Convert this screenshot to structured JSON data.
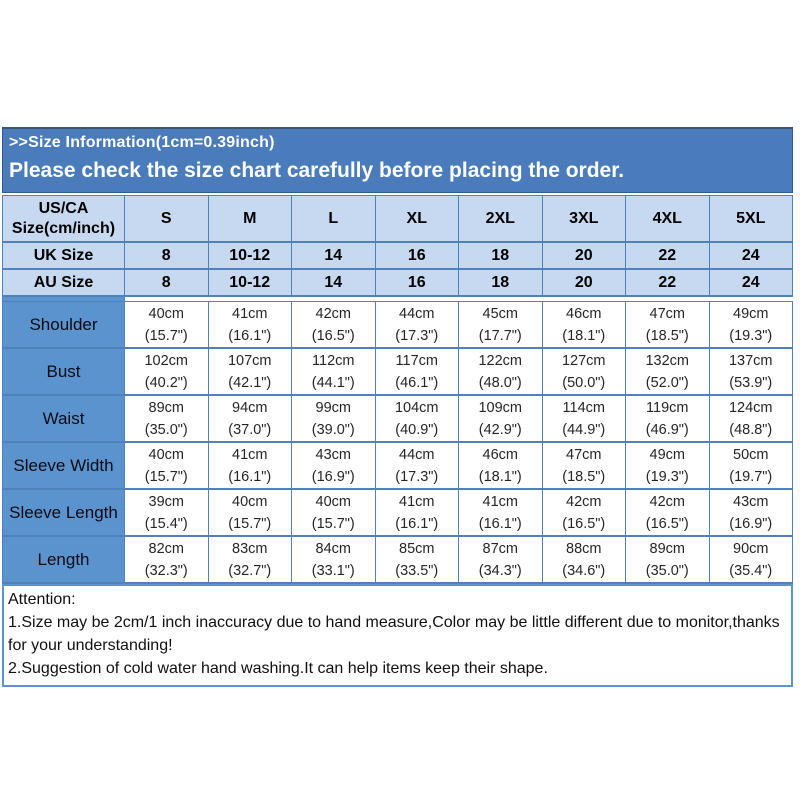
{
  "header": {
    "title": ">>Size Information(1cm=0.39inch)",
    "subtitle": "Please check the size chart carefully before placing the order."
  },
  "colors": {
    "header_bar_blue": "#4a7cbc",
    "light_blue_cell": "#c6d9f0",
    "label_cell_blue": "#5b93cf",
    "border_blue": "#4f81bd",
    "header_text": "#ffffff",
    "cell_text": "#262626"
  },
  "size_table": {
    "corner_label": "US/CA Size(cm/inch)",
    "sizes": [
      "S",
      "M",
      "L",
      "XL",
      "2XL",
      "3XL",
      "4XL",
      "5XL"
    ],
    "uk_row": {
      "label": "UK Size",
      "values": [
        "8",
        "10-12",
        "14",
        "16",
        "18",
        "20",
        "22",
        "24"
      ]
    },
    "au_row": {
      "label": "AU Size",
      "values": [
        "8",
        "10-12",
        "14",
        "16",
        "18",
        "20",
        "22",
        "24"
      ]
    },
    "measurements": [
      {
        "label": "Shoulder",
        "cm": [
          "40cm",
          "41cm",
          "42cm",
          "44cm",
          "45cm",
          "46cm",
          "47cm",
          "49cm"
        ],
        "inch": [
          "(15.7\")",
          "(16.1\")",
          "(16.5\")",
          "(17.3\")",
          "(17.7\")",
          "(18.1\")",
          "(18.5\")",
          "(19.3\")"
        ]
      },
      {
        "label": "Bust",
        "cm": [
          "102cm",
          "107cm",
          "112cm",
          "117cm",
          "122cm",
          "127cm",
          "132cm",
          "137cm"
        ],
        "inch": [
          "(40.2\")",
          "(42.1\")",
          "(44.1\")",
          "(46.1\")",
          "(48.0\")",
          "(50.0\")",
          "(52.0\")",
          "(53.9\")"
        ]
      },
      {
        "label": "Waist",
        "cm": [
          "89cm",
          "94cm",
          "99cm",
          "104cm",
          "109cm",
          "114cm",
          "119cm",
          "124cm"
        ],
        "inch": [
          "(35.0\")",
          "(37.0\")",
          "(39.0\")",
          "(40.9\")",
          "(42.9\")",
          "(44.9\")",
          "(46.9\")",
          "(48.8\")"
        ]
      },
      {
        "label": "Sleeve Width",
        "cm": [
          "40cm",
          "41cm",
          "43cm",
          "44cm",
          "46cm",
          "47cm",
          "49cm",
          "50cm"
        ],
        "inch": [
          "(15.7\")",
          "(16.1\")",
          "(16.9\")",
          "(17.3\")",
          "(18.1\")",
          "(18.5\")",
          "(19.3\")",
          "(19.7\")"
        ]
      },
      {
        "label": "Sleeve Length",
        "cm": [
          "39cm",
          "40cm",
          "40cm",
          "41cm",
          "41cm",
          "42cm",
          "42cm",
          "43cm"
        ],
        "inch": [
          "(15.4\")",
          "(15.7\")",
          "(15.7\")",
          "(16.1\")",
          "(16.1\")",
          "(16.5\")",
          "(16.5\")",
          "(16.9\")"
        ]
      },
      {
        "label": "Length",
        "cm": [
          "82cm",
          "83cm",
          "84cm",
          "85cm",
          "87cm",
          "88cm",
          "89cm",
          "90cm"
        ],
        "inch": [
          "(32.3\")",
          "(32.7\")",
          "(33.1\")",
          "(33.5\")",
          "(34.3\")",
          "(34.6\")",
          "(35.0\")",
          "(35.4\")"
        ]
      }
    ]
  },
  "attention": {
    "title": "Attention:",
    "lines": [
      "1.Size may be 2cm/1 inch inaccuracy due to hand measure,Color may be little different due to monitor,thanks for your understanding!",
      "2.Suggestion of cold water hand washing.It can help items keep their shape."
    ]
  }
}
